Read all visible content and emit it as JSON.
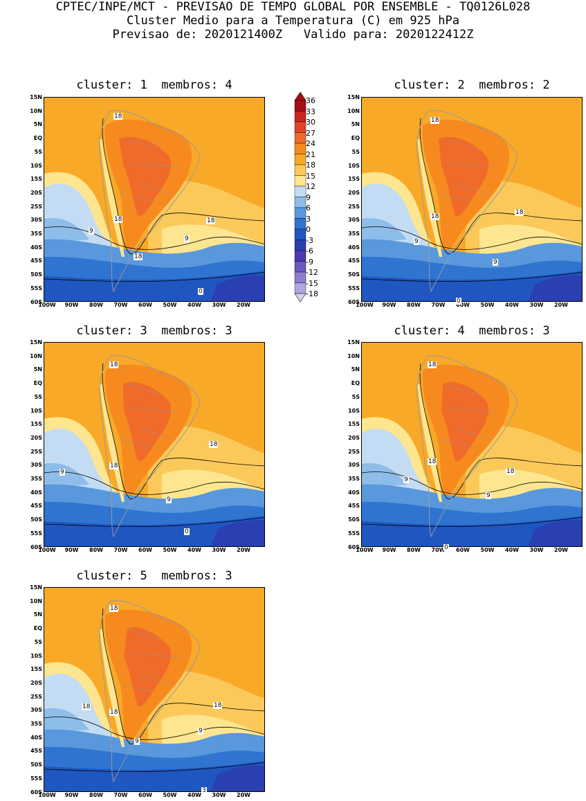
{
  "header": {
    "line1": "CPTEC/INPE/MCT - PREVISAO DE TEMPO GLOBAL POR ENSEMBLE - TQ0126L028",
    "line2": "Cluster Medio para a Temperatura (C) em 925 hPa",
    "line3": "Previsao de: 2020121400Z   Valido para: 2020122412Z"
  },
  "panels": [
    {
      "title": "cluster: 1  membros: 4"
    },
    {
      "title": "cluster: 2  membros: 2"
    },
    {
      "title": "cluster: 3  membros: 3"
    },
    {
      "title": "cluster: 4  membros: 3"
    },
    {
      "title": "cluster: 5  membros: 3"
    }
  ],
  "lat_labels": [
    "15N",
    "10N",
    "5N",
    "EQ",
    "5S",
    "10S",
    "15S",
    "20S",
    "25S",
    "30S",
    "35S",
    "40S",
    "45S",
    "50S",
    "55S",
    "60S"
  ],
  "lon_labels": [
    "100W",
    "90W",
    "80W",
    "70W",
    "60W",
    "50W",
    "40W",
    "30W",
    "20W"
  ],
  "colorbar": {
    "levels": [
      "36",
      "33",
      "30",
      "27",
      "24",
      "21",
      "18",
      "15",
      "12",
      "9",
      "6",
      "3",
      "0",
      "-3",
      "-6",
      "-9",
      "-12",
      "-15",
      "-18"
    ],
    "colors": [
      "#a50f15",
      "#c8261e",
      "#e0452a",
      "#f06a2a",
      "#f68a1f",
      "#f9a928",
      "#fbc95a",
      "#fde68f",
      "#c3dcf4",
      "#8fbde9",
      "#5a98dd",
      "#2f74d0",
      "#1f56c0",
      "#2a3fb0",
      "#4b3ab0",
      "#6b58c0",
      "#8e7dd0",
      "#b3a6e0",
      "#d8cfef"
    ]
  },
  "contour_labels": {
    "p1": [
      "18",
      "18",
      "18",
      "18",
      "9",
      "9",
      "0"
    ],
    "p2": [
      "18",
      "18",
      "18",
      "9",
      "9",
      "0"
    ],
    "p3": [
      "18",
      "18",
      "18",
      "9",
      "9",
      "0"
    ],
    "p4": [
      "18",
      "18",
      "18",
      "9",
      "9",
      "0"
    ],
    "p5": [
      "18",
      "18",
      "18",
      "18",
      "9",
      "9",
      "3"
    ]
  }
}
